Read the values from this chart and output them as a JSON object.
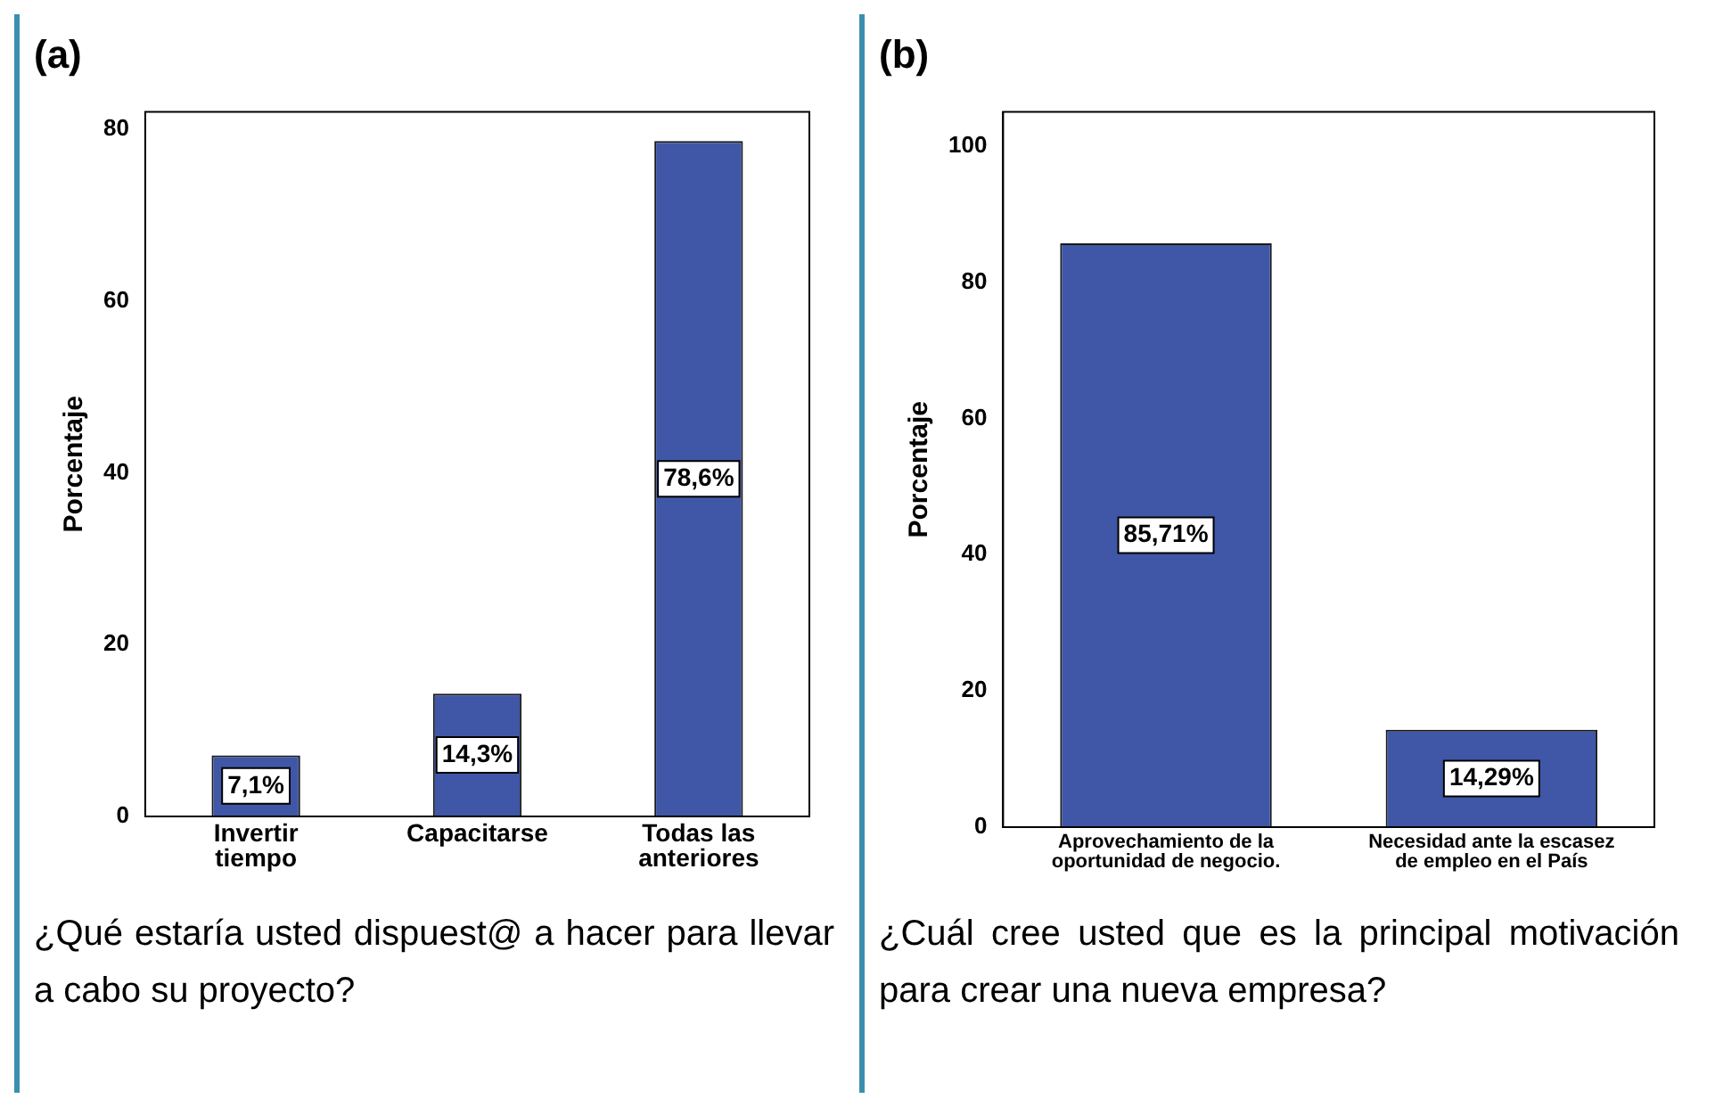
{
  "chart_data": [
    {
      "type": "bar",
      "title": "(a)",
      "categories": [
        "Invertir tiempo",
        "Capacitarse",
        "Todas las anteriores"
      ],
      "values": [
        7.1,
        14.3,
        78.6
      ],
      "value_labels": [
        "7,1%",
        "14,3%",
        "78,6%"
      ],
      "color": "#3f57a6",
      "ylabel": "Porcentaje",
      "ylim": [
        0,
        82
      ],
      "yticks": [
        0,
        20,
        40,
        60,
        80
      ],
      "grid": false,
      "legend": false,
      "annotations": [
        "¿Qué estaría usted dispuest@ a hacer para llevar a cabo su proyecto?"
      ]
    },
    {
      "type": "bar",
      "title": "(b)",
      "categories": [
        "Aprovechamiento de la oportunidad de negocio.",
        "Necesidad ante la escasez de empleo en el País"
      ],
      "values": [
        85.71,
        14.29
      ],
      "value_labels": [
        "85,71%",
        "14,29%"
      ],
      "color": "#3f57a6",
      "ylabel": "Porcentaje",
      "ylim": [
        0,
        105
      ],
      "yticks": [
        0,
        20,
        40,
        60,
        80,
        100
      ],
      "grid": false,
      "legend": false,
      "annotations": [
        "¿Cuál cree usted que es la principal motivación para crear una nueva empresa?"
      ]
    }
  ]
}
